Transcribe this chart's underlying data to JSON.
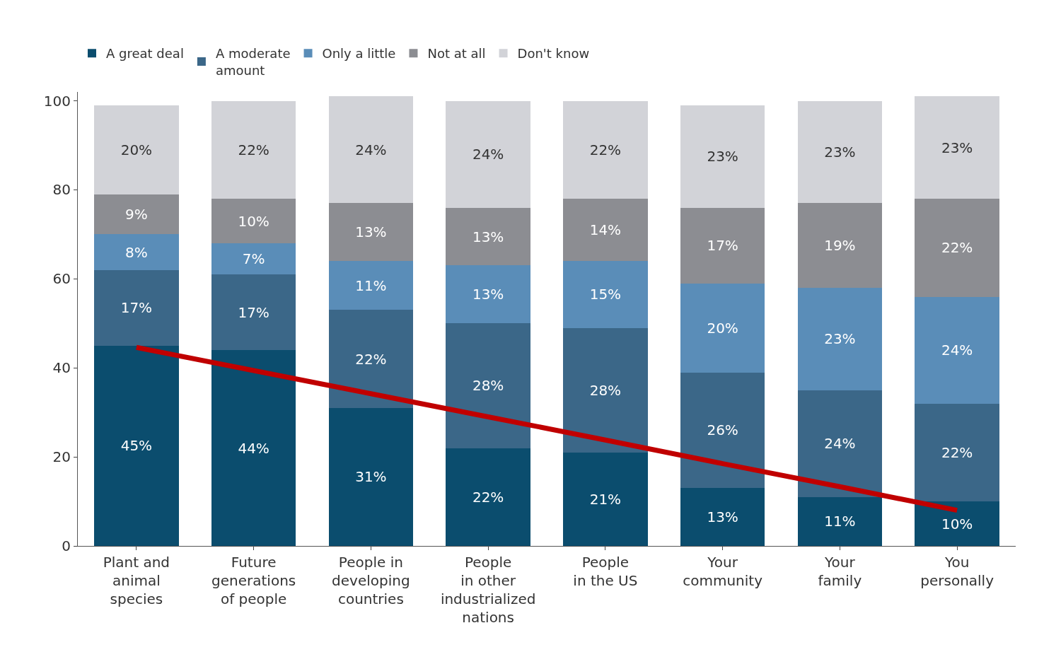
{
  "chart_data": {
    "type": "bar",
    "stacked": true,
    "categories": [
      "Plant and\nanimal\nspecies",
      "Future\ngenerations\nof people",
      "People in\ndeveloping\ncountries",
      "People\nin other\nindustrialized\nnations",
      "People\nin the US",
      "Your\ncommunity",
      "Your\nfamily",
      "You\npersonally"
    ],
    "ylim": [
      0,
      102
    ],
    "yticks": [
      0,
      20,
      40,
      60,
      80,
      100
    ],
    "legend": "top left",
    "series": [
      {
        "name": "A great deal",
        "color": "#0b4d6e",
        "values": [
          45,
          44,
          31,
          22,
          21,
          13,
          11,
          10
        ],
        "value_labels": [
          "45%",
          "44%",
          "31%",
          "22%",
          "21%",
          "13%",
          "11%",
          "10%"
        ]
      },
      {
        "name": "A moderate\namount",
        "color": "#3b6788",
        "values": [
          17,
          17,
          22,
          28,
          28,
          26,
          24,
          22
        ],
        "value_labels": [
          "17%",
          "17%",
          "22%",
          "28%",
          "28%",
          "26%",
          "24%",
          "22%"
        ]
      },
      {
        "name": "Only a little",
        "color": "#5a8db8",
        "values": [
          8,
          7,
          11,
          13,
          15,
          20,
          23,
          24
        ],
        "value_labels": [
          "8%",
          "7%",
          "11%",
          "13%",
          "15%",
          "20%",
          "23%",
          "24%"
        ]
      },
      {
        "name": "Not at all",
        "color": "#8c8d92",
        "values": [
          9,
          10,
          13,
          13,
          14,
          17,
          19,
          22
        ],
        "value_labels": [
          "9%",
          "10%",
          "13%",
          "13%",
          "14%",
          "17%",
          "19%",
          "22%"
        ]
      },
      {
        "name": "Don't know",
        "color": "#d2d3d8",
        "values": [
          20,
          22,
          24,
          24,
          22,
          23,
          23,
          23
        ],
        "value_labels": [
          "20%",
          "22%",
          "24%",
          "24%",
          "22%",
          "23%",
          "23%",
          "23%"
        ]
      },
      {
        "type": "line",
        "color": "#c00000",
        "values": [
          44.6,
          39.4,
          34.2,
          29.0,
          23.8,
          18.5,
          13.3,
          8.0
        ]
      }
    ]
  }
}
